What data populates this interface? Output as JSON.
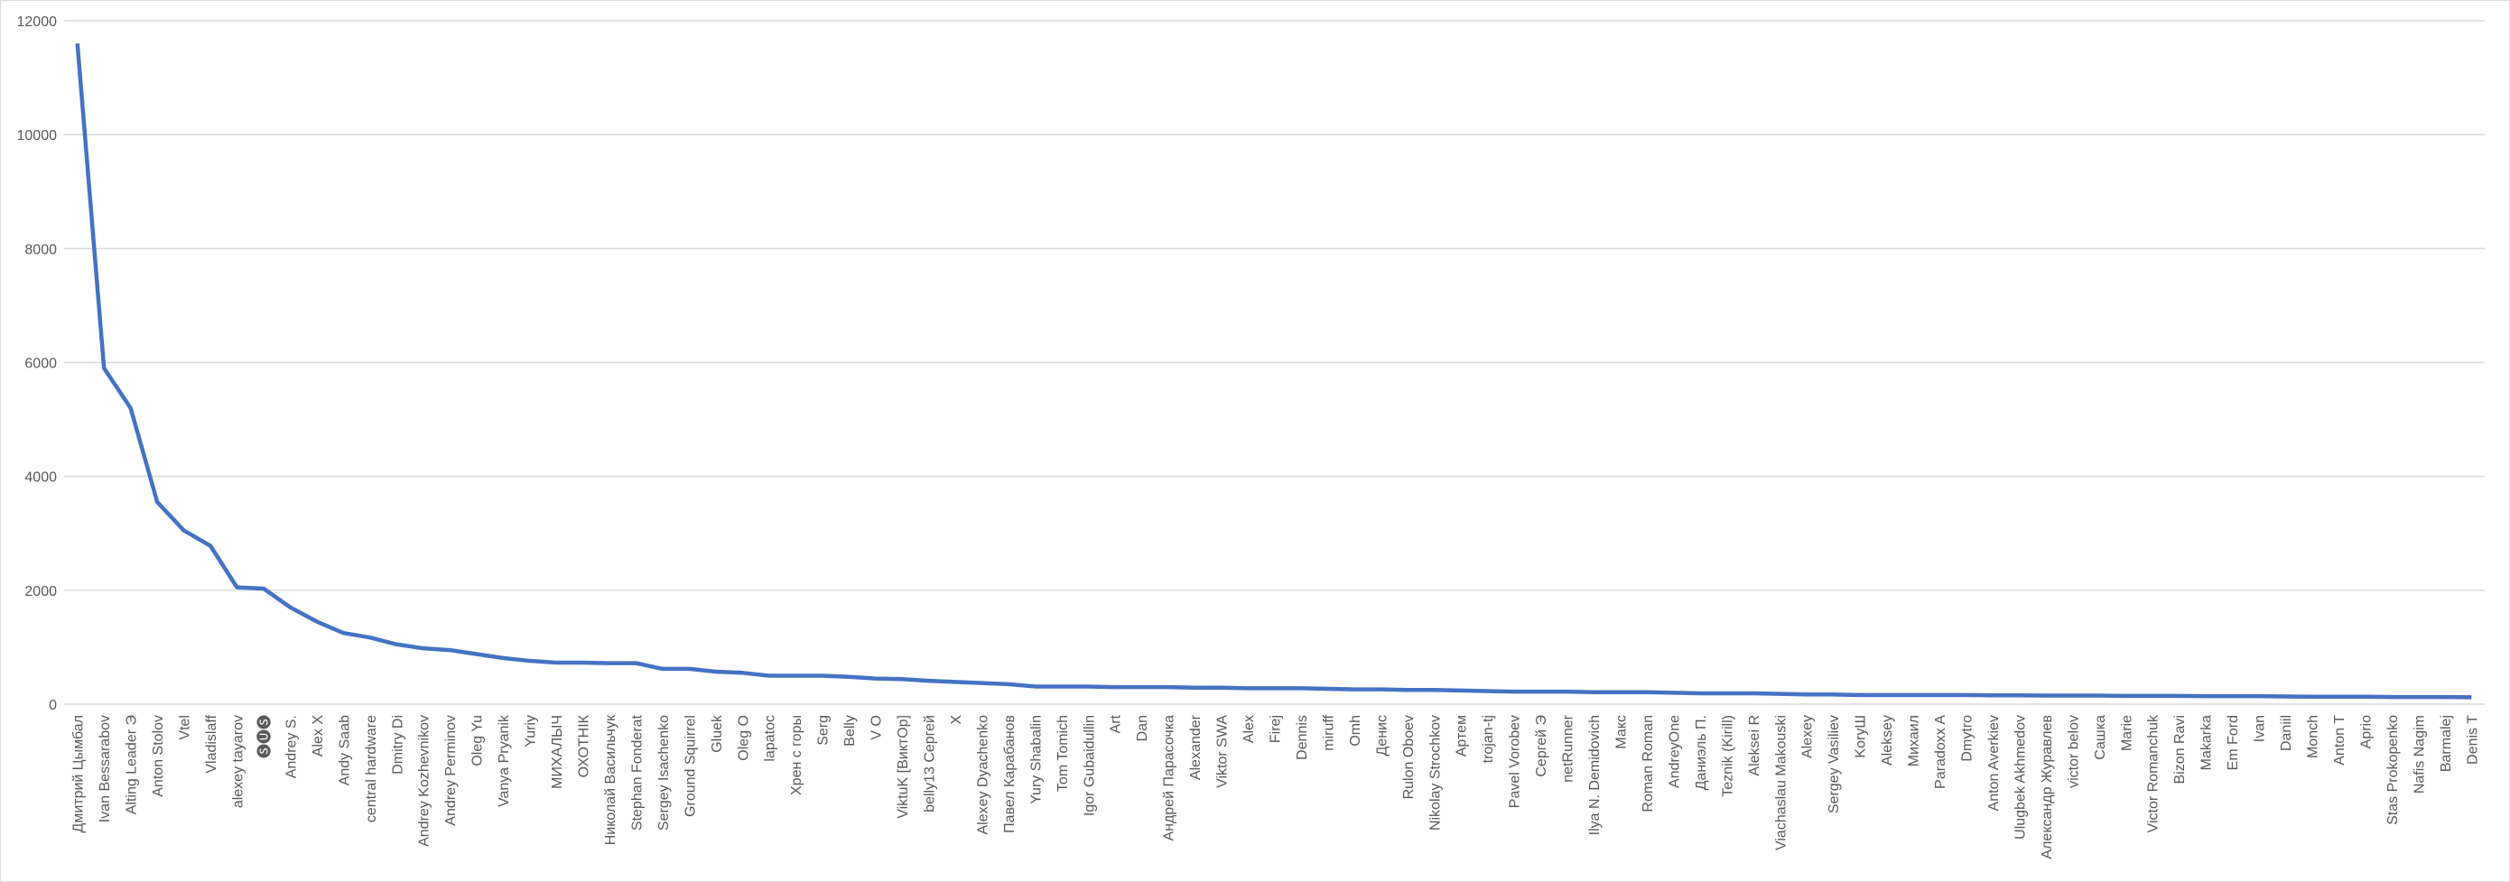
{
  "chart_data": {
    "type": "line",
    "categories": [
      "Дмитрий Цымбал",
      "Ivan Bessarabov",
      "Alting Leader Э",
      "Anton Stolov",
      "Vtel",
      "Vladislaff",
      "alexey tayarov",
      "🅢🅤🅢",
      "Andrey S.",
      "Alex X",
      "Andy Saab",
      "central hardware",
      "Dmitry Di",
      "Andrey Kozhevnikov",
      "Andrey Perminov",
      "Oleg Yu",
      "Vanya Pryanik",
      "Yuriy",
      "МИХАЛЫЧ",
      "ОХОТНІК",
      "Николай Васильчук",
      "Stephan Fonderat",
      "Sergey Isachenko",
      "Ground Squirrel",
      "Gluek",
      "Oleg O",
      "lapatoc",
      "Хрен с горы",
      "Serg",
      "Belly",
      "V O",
      "ViktuK [ВиктОр]",
      "belly13 Сергей",
      "X",
      "Alexey Dyachenko",
      "Павел Карабанов",
      "Yury Shabalin",
      "Tom Tomich",
      "Igor Gubaidullin",
      "Art",
      "Dan",
      "Андрей Парасочка",
      "Alexander",
      "Viktor SWA",
      "Alex",
      "Firej",
      "Dennis",
      "miruff",
      "Omh",
      "Денис",
      "Rulon Oboev",
      "Nikolay Strochkov",
      "Артем",
      "trojan-tj",
      "Pavel Vorobev",
      "Сергей Э",
      "netRunner",
      "Ilya N. Demidovich",
      "Макс",
      "Roman Roman",
      "AndreyOne",
      "Даниэль П.",
      "Teznik (Kirill)",
      "Aleksei R",
      "Viachaslau Makouski",
      "Alexey",
      "Sergey Vasiliev",
      "KoryШ",
      "Aleksey",
      "Михаил",
      "Paradoxx A",
      "Dmytro",
      "Anton Averkiev",
      "Ulugbek Akhmedov",
      "Александр Журавлев",
      "victor belov",
      "Сашка",
      "Marie",
      "Victor Romanchuk",
      "Bizon Ravi",
      "Makarka",
      "Em Ford",
      "Ivan",
      "Daniil",
      "Monch",
      "Anton T",
      "Aprio",
      "Stas Prokopenko",
      "Nafis Nagim",
      "Barmalej",
      "Denis T"
    ],
    "series": [
      {
        "color": "#4472c4",
        "values": [
          11600,
          5900,
          5200,
          3550,
          3050,
          2780,
          2050,
          2030,
          1700,
          1450,
          1250,
          1170,
          1050,
          980,
          950,
          880,
          810,
          760,
          730,
          730,
          720,
          720,
          620,
          620,
          570,
          550,
          500,
          500,
          500,
          480,
          450,
          440,
          410,
          390,
          370,
          350,
          310,
          310,
          310,
          300,
          300,
          300,
          290,
          290,
          280,
          280,
          280,
          270,
          260,
          260,
          250,
          250,
          240,
          230,
          220,
          220,
          220,
          210,
          210,
          210,
          200,
          190,
          190,
          190,
          180,
          170,
          170,
          160,
          160,
          160,
          160,
          160,
          155,
          155,
          150,
          150,
          150,
          145,
          145,
          145,
          140,
          140,
          140,
          135,
          130,
          130,
          130,
          125,
          125,
          125,
          120
        ]
      }
    ],
    "ylim": [
      0,
      12000
    ],
    "yticks": [
      0,
      2000,
      4000,
      6000,
      8000,
      10000,
      12000
    ],
    "grid": true
  }
}
